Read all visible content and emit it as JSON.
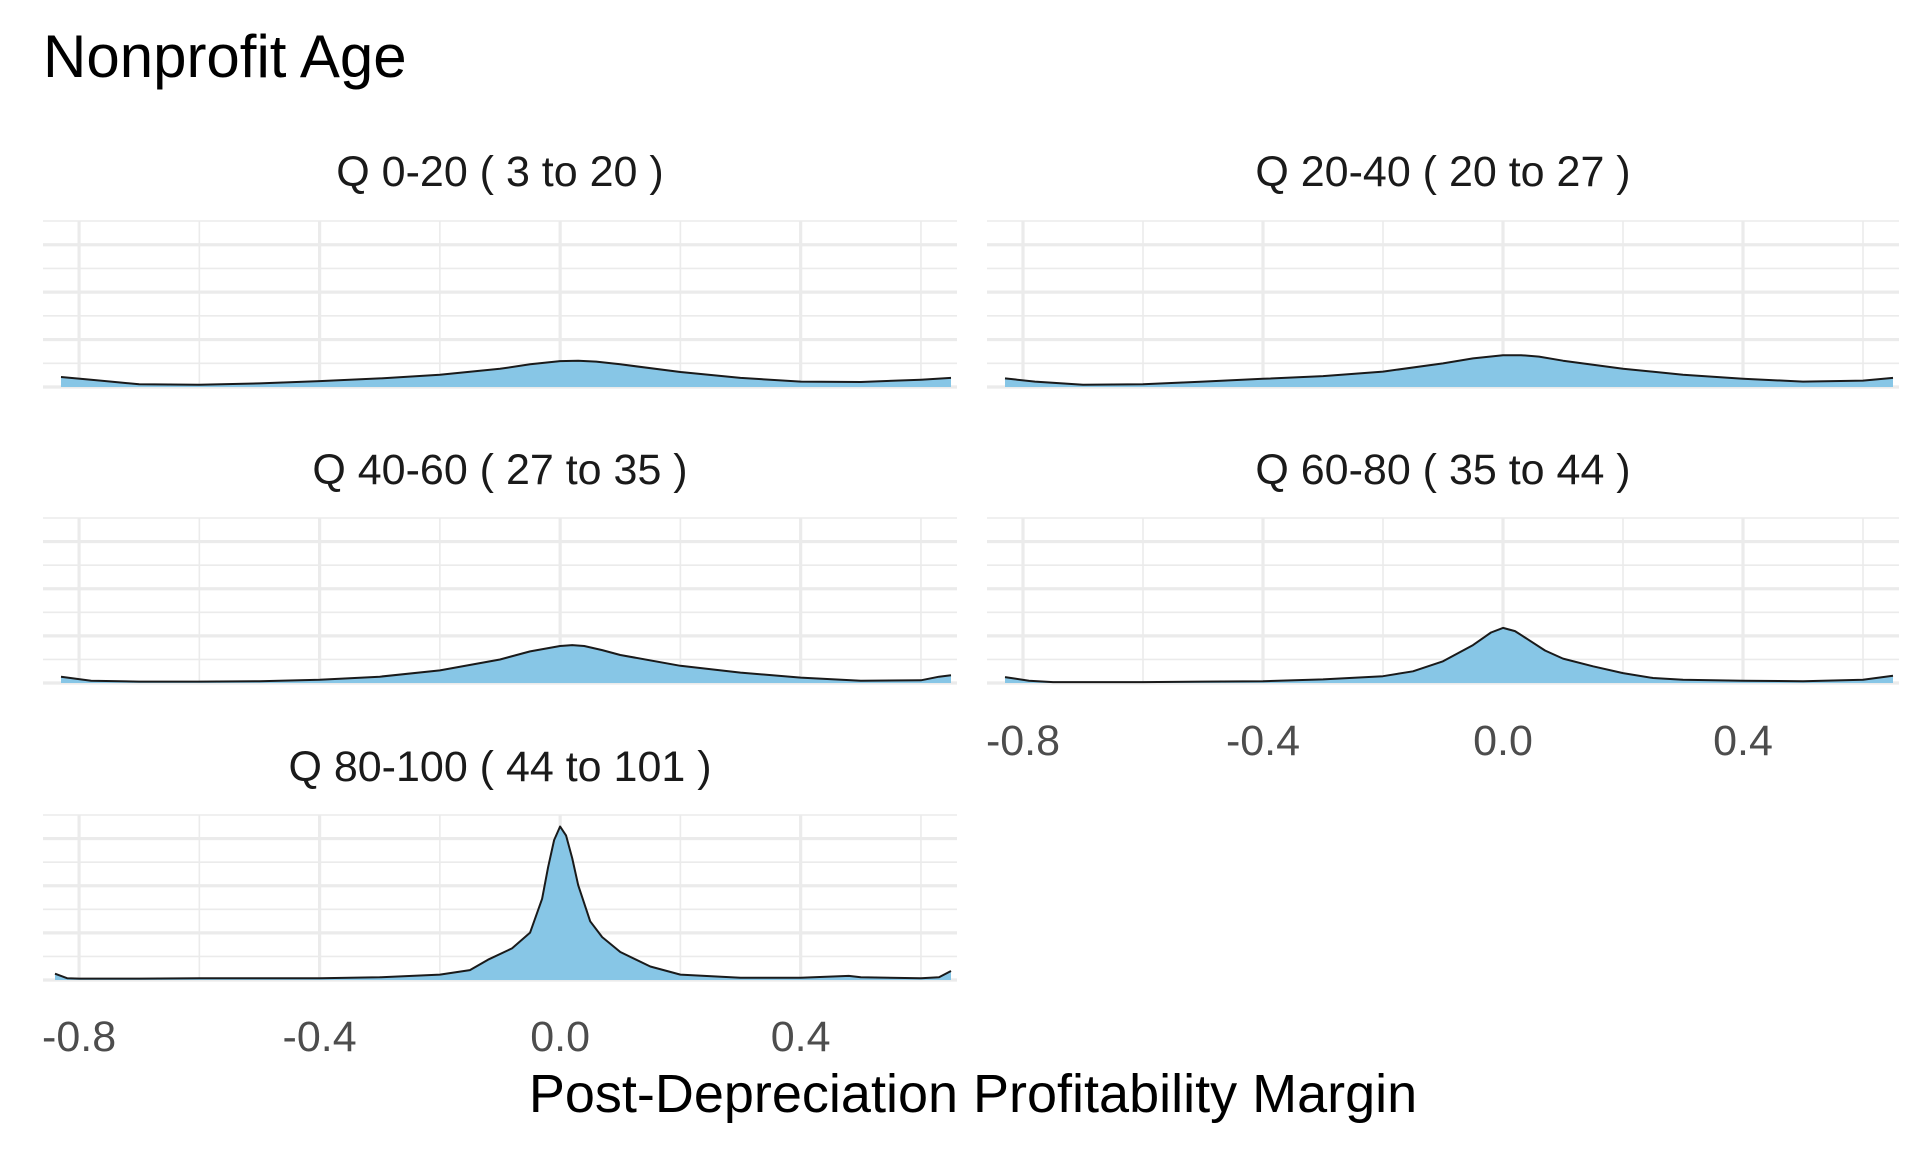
{
  "chart_data": {
    "type": "area",
    "title": "Nonprofit Age",
    "xlabel": "Post-Depreciation Profitability Margin",
    "ylabel": "",
    "xlim": [
      -0.86,
      0.66
    ],
    "x_ticks": [
      "-0.8",
      "-0.4",
      "0.0",
      "0.4"
    ],
    "x_tick_values": [
      -0.8,
      -0.4,
      0.0,
      0.4
    ],
    "grid": true,
    "fill_color": "#87c6e6",
    "line_color": "#1a1a1a",
    "panels": [
      {
        "label": "Q 0-20   ( 3 to 20 )",
        "x": [
          -0.83,
          -0.78,
          -0.7,
          -0.6,
          -0.5,
          -0.4,
          -0.3,
          -0.2,
          -0.1,
          -0.05,
          0.0,
          0.03,
          0.06,
          0.1,
          0.2,
          0.3,
          0.4,
          0.5,
          0.6,
          0.65
        ],
        "y": [
          0.22,
          0.16,
          0.06,
          0.05,
          0.08,
          0.13,
          0.19,
          0.27,
          0.4,
          0.5,
          0.57,
          0.58,
          0.56,
          0.5,
          0.33,
          0.2,
          0.12,
          0.11,
          0.16,
          0.2
        ]
      },
      {
        "label": "Q 20-40   ( 20 to 27 )",
        "x": [
          -0.83,
          -0.78,
          -0.7,
          -0.6,
          -0.5,
          -0.4,
          -0.3,
          -0.2,
          -0.1,
          -0.05,
          0.0,
          0.03,
          0.06,
          0.1,
          0.2,
          0.3,
          0.4,
          0.5,
          0.6,
          0.65
        ],
        "y": [
          0.19,
          0.12,
          0.05,
          0.06,
          0.12,
          0.18,
          0.24,
          0.34,
          0.52,
          0.63,
          0.7,
          0.7,
          0.67,
          0.58,
          0.4,
          0.27,
          0.18,
          0.12,
          0.14,
          0.2
        ]
      },
      {
        "label": "Q 40-60   ( 27 to 35 )",
        "x": [
          -0.83,
          -0.78,
          -0.7,
          -0.6,
          -0.5,
          -0.4,
          -0.3,
          -0.2,
          -0.1,
          -0.05,
          0.0,
          0.02,
          0.04,
          0.07,
          0.1,
          0.2,
          0.3,
          0.4,
          0.5,
          0.6,
          0.63,
          0.65
        ],
        "y": [
          0.14,
          0.05,
          0.03,
          0.03,
          0.04,
          0.07,
          0.14,
          0.28,
          0.52,
          0.7,
          0.82,
          0.84,
          0.82,
          0.73,
          0.62,
          0.38,
          0.23,
          0.12,
          0.05,
          0.06,
          0.14,
          0.17
        ]
      },
      {
        "label": "Q 60-80   ( 35 to 44 )",
        "x": [
          -0.83,
          -0.79,
          -0.75,
          -0.7,
          -0.6,
          -0.5,
          -0.4,
          -0.3,
          -0.2,
          -0.15,
          -0.1,
          -0.05,
          -0.02,
          0.0,
          0.02,
          0.04,
          0.07,
          0.1,
          0.15,
          0.2,
          0.25,
          0.3,
          0.4,
          0.5,
          0.6,
          0.65
        ],
        "y": [
          0.13,
          0.05,
          0.02,
          0.02,
          0.02,
          0.03,
          0.04,
          0.08,
          0.15,
          0.26,
          0.48,
          0.84,
          1.12,
          1.22,
          1.15,
          0.98,
          0.72,
          0.54,
          0.37,
          0.22,
          0.11,
          0.07,
          0.05,
          0.04,
          0.07,
          0.16
        ]
      },
      {
        "label": "Q 80-100   ( 44 to 101 )",
        "x": [
          -0.84,
          -0.82,
          -0.8,
          -0.7,
          -0.6,
          -0.5,
          -0.4,
          -0.3,
          -0.2,
          -0.15,
          -0.12,
          -0.08,
          -0.05,
          -0.03,
          -0.02,
          -0.01,
          0.0,
          0.01,
          0.02,
          0.03,
          0.05,
          0.07,
          0.1,
          0.15,
          0.2,
          0.3,
          0.4,
          0.48,
          0.5,
          0.6,
          0.63,
          0.65
        ],
        "y": [
          0.14,
          0.04,
          0.03,
          0.03,
          0.04,
          0.04,
          0.04,
          0.06,
          0.12,
          0.22,
          0.45,
          0.7,
          1.05,
          1.8,
          2.5,
          3.1,
          3.4,
          3.2,
          2.7,
          2.1,
          1.3,
          0.95,
          0.62,
          0.3,
          0.12,
          0.05,
          0.05,
          0.09,
          0.06,
          0.04,
          0.06,
          0.2
        ]
      }
    ]
  }
}
